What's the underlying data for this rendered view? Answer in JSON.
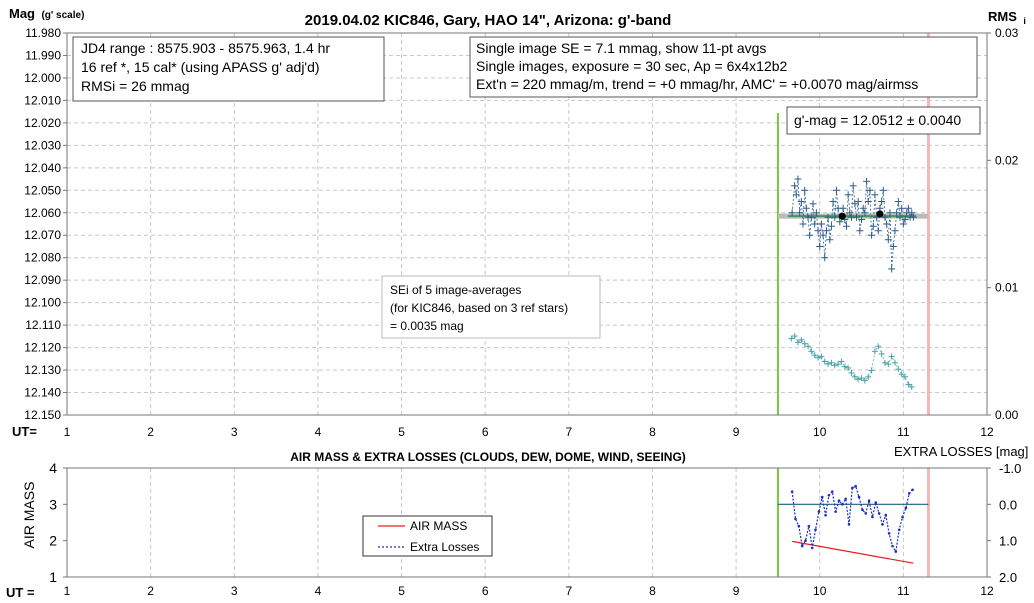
{
  "top_chart": {
    "title": "2019.04.02 KIC846, Gary, HAO 14\", Arizona: g'-band",
    "y_label": "Mag",
    "y_label_sub": "(g' scale)",
    "y2_label": "RMS",
    "y2_label_sub": "i",
    "x_label": "UT=",
    "info_box": [
      "JD4 range : 8575.903 - 8575.963,  1.4  hr",
      "16 ref *, 15 cal* (using APASS g' adj'd)",
      "RMSi = 26 mmag"
    ],
    "single_box": [
      "Single image SE = 7.1 mmag, show  11-pt avgs",
      "Single images, exposure = 30 sec, Ap = 6x4x12b2",
      "Ext'n = 220 mmag/m, trend =  +0 mmag/hr, AMC' = +0.0070 mag/airmss"
    ],
    "gmag_box": "g'-mag = 12.0512 ± 0.0040",
    "sei_box": [
      "SEi of 5 image-averages",
      "(for KIC846, based on 3 ref stars)",
      " = 0.0035 mag"
    ],
    "colors": {
      "mag": "#2e5d8e",
      "rms": "#4aa3a8",
      "fit": "#3f9a5a",
      "green_line": "#7cc242",
      "pink_line": "#f4b6b6"
    }
  },
  "bottom_chart": {
    "title": "AIR MASS & EXTRA LOSSES (CLOUDS, DEW, DOME, WIND, SEEING)",
    "y_label": "AIR MASS",
    "y2_label": "EXTRA LOSSES [mag]",
    "x_label": "UT =",
    "legend": [
      "AIR MASS",
      "Extra Losses"
    ],
    "colors": {
      "airmass": "#e02020",
      "losses": "#1a2fc0",
      "zero_line": "#1f5f7a"
    }
  },
  "chart_data": [
    {
      "type": "scatter",
      "title": "2019.04.02 KIC846, Gary, HAO 14\", Arizona: g'-band",
      "xlim": [
        1,
        12
      ],
      "x_ticks": [
        "1",
        "2",
        "3",
        "4",
        "5",
        "6",
        "7",
        "8",
        "9",
        "10",
        "11",
        "12"
      ],
      "ylim": [
        12.15,
        11.98
      ],
      "y_ticks": [
        "11.980",
        "11.990",
        "12.000",
        "12.010",
        "12.020",
        "12.030",
        "12.040",
        "12.050",
        "12.060",
        "12.070",
        "12.080",
        "12.090",
        "12.100",
        "12.110",
        "12.120",
        "12.130",
        "12.140",
        "12.150"
      ],
      "y2lim": [
        0.0,
        0.03
      ],
      "y2_ticks": [
        "0.03",
        "0.02",
        "0.01",
        "0.00"
      ],
      "vlines": [
        9.5,
        11.3
      ],
      "fit_level": 12.0615,
      "fit_xrange": [
        9.5,
        11.3
      ],
      "avg_points": {
        "x": [
          10.27,
          10.72
        ],
        "y": [
          12.0615,
          12.0605
        ]
      },
      "series": [
        {
          "name": "mag",
          "x": [
            9.67,
            9.7,
            9.72,
            9.74,
            9.76,
            9.78,
            9.8,
            9.82,
            9.84,
            9.86,
            9.88,
            9.9,
            9.92,
            9.94,
            9.96,
            9.98,
            10.0,
            10.02,
            10.04,
            10.06,
            10.08,
            10.1,
            10.12,
            10.14,
            10.16,
            10.18,
            10.2,
            10.22,
            10.24,
            10.26,
            10.28,
            10.3,
            10.32,
            10.34,
            10.36,
            10.38,
            10.4,
            10.42,
            10.44,
            10.46,
            10.48,
            10.5,
            10.52,
            10.54,
            10.56,
            10.58,
            10.6,
            10.62,
            10.64,
            10.66,
            10.68,
            10.7,
            10.72,
            10.74,
            10.76,
            10.78,
            10.8,
            10.82,
            10.84,
            10.86,
            10.88,
            10.9,
            10.92,
            10.94,
            10.96,
            10.98,
            11.0,
            11.02,
            11.04,
            11.06,
            11.08,
            11.1,
            11.12
          ],
          "y": [
            12.06,
            12.048,
            12.052,
            12.045,
            12.06,
            12.055,
            12.065,
            12.05,
            12.058,
            12.062,
            12.07,
            12.062,
            12.056,
            12.065,
            12.06,
            12.068,
            12.075,
            12.065,
            12.07,
            12.08,
            12.068,
            12.062,
            12.072,
            12.066,
            12.055,
            12.062,
            12.05,
            12.058,
            12.064,
            12.062,
            12.058,
            12.063,
            12.066,
            12.052,
            12.06,
            12.062,
            12.048,
            12.056,
            12.062,
            12.055,
            12.068,
            12.063,
            12.058,
            12.06,
            12.046,
            12.055,
            12.05,
            12.07,
            12.066,
            12.052,
            12.062,
            12.068,
            12.058,
            12.055,
            12.05,
            12.062,
            12.065,
            12.072,
            12.06,
            12.085,
            12.075,
            12.068,
            12.06,
            12.055,
            12.062,
            12.058,
            12.065,
            12.063,
            12.06,
            12.058,
            12.062,
            12.06,
            12.062
          ]
        },
        {
          "name": "rms",
          "x": [
            9.66,
            9.7,
            9.74,
            9.78,
            9.82,
            9.86,
            9.9,
            9.94,
            9.98,
            10.02,
            10.06,
            10.1,
            10.14,
            10.18,
            10.22,
            10.26,
            10.3,
            10.34,
            10.38,
            10.42,
            10.46,
            10.5,
            10.54,
            10.58,
            10.62,
            10.66,
            10.7,
            10.74,
            10.78,
            10.82,
            10.86,
            10.9,
            10.94,
            10.98,
            11.02,
            11.06,
            11.1
          ],
          "y": [
            0.006,
            0.0062,
            0.0057,
            0.0059,
            0.0056,
            0.0054,
            0.005,
            0.0047,
            0.0045,
            0.0046,
            0.0042,
            0.004,
            0.0041,
            0.0039,
            0.004,
            0.0042,
            0.0038,
            0.0037,
            0.0033,
            0.003,
            0.0028,
            0.0029,
            0.0027,
            0.003,
            0.0035,
            0.005,
            0.0054,
            0.0048,
            0.0041,
            0.004,
            0.0046,
            0.0041,
            0.0036,
            0.0032,
            0.003,
            0.0024,
            0.0022
          ]
        }
      ]
    },
    {
      "type": "line",
      "title": "AIR MASS & EXTRA LOSSES (CLOUDS, DEW, DOME, WIND, SEEING)",
      "xlim": [
        1,
        12
      ],
      "x_ticks": [
        "1",
        "2",
        "3",
        "4",
        "5",
        "6",
        "7",
        "8",
        "9",
        "10",
        "11",
        "12"
      ],
      "ylim": [
        1,
        4
      ],
      "y_ticks": [
        "4",
        "3",
        "2",
        "1"
      ],
      "y2lim": [
        -1.0,
        2.0
      ],
      "y2_ticks": [
        "-1.0",
        "0.0",
        "1.0",
        "2.0"
      ],
      "vlines": [
        9.5,
        11.3
      ],
      "legend_position": "center",
      "series": [
        {
          "name": "AIR MASS",
          "x": [
            9.67,
            11.12
          ],
          "y": [
            1.98,
            1.38
          ]
        },
        {
          "name": "Extra Losses",
          "x": [
            9.67,
            9.71,
            9.75,
            9.79,
            9.83,
            9.87,
            9.91,
            9.95,
            9.99,
            10.03,
            10.07,
            10.11,
            10.15,
            10.19,
            10.23,
            10.27,
            10.31,
            10.35,
            10.39,
            10.43,
            10.47,
            10.51,
            10.55,
            10.59,
            10.63,
            10.67,
            10.71,
            10.75,
            10.79,
            10.83,
            10.87,
            10.91,
            10.95,
            10.99,
            11.03,
            11.07,
            11.11
          ],
          "y": [
            -0.35,
            0.4,
            0.6,
            1.15,
            1.0,
            0.6,
            1.2,
            0.7,
            0.2,
            -0.2,
            0.3,
            -0.25,
            -0.35,
            0.2,
            -0.1,
            0.0,
            -0.15,
            0.55,
            -0.45,
            -0.5,
            -0.2,
            0.15,
            0.25,
            -0.1,
            0.35,
            -0.05,
            0.25,
            0.55,
            0.3,
            0.8,
            1.15,
            1.3,
            0.7,
            0.35,
            0.1,
            -0.3,
            -0.4
          ]
        }
      ]
    }
  ]
}
